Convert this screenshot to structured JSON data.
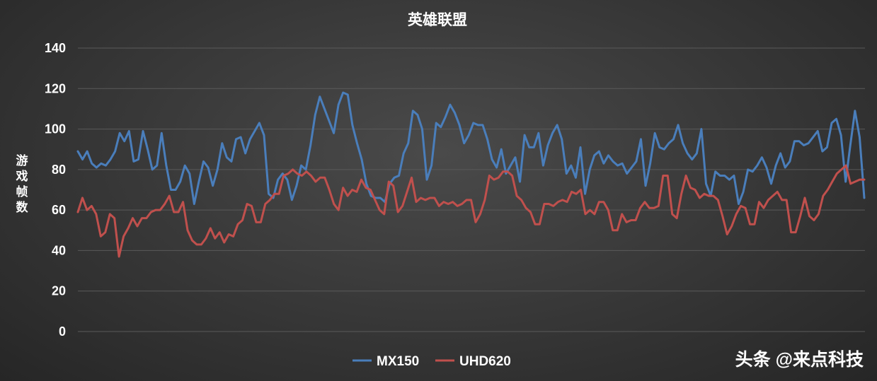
{
  "chart_data": {
    "type": "line",
    "title": "英雄联盟",
    "ylabel": "游戏帧数",
    "xlabel": "",
    "ylim": [
      0,
      140
    ],
    "yticks": [
      "0",
      "20",
      "40",
      "60",
      "80",
      "100",
      "120",
      "140"
    ],
    "grid": true,
    "legend_position": "bottom",
    "series": [
      {
        "name": "MX150",
        "color": "#4a7ebb",
        "values": [
          89,
          85,
          89,
          83,
          81,
          83,
          82,
          85,
          89,
          98,
          94,
          99,
          84,
          85,
          99,
          90,
          80,
          82,
          98,
          82,
          70,
          70,
          74,
          82,
          78,
          63,
          74,
          84,
          81,
          72,
          80,
          93,
          86,
          84,
          95,
          96,
          88,
          95,
          99,
          103,
          97,
          68,
          66,
          75,
          78,
          75,
          65,
          72,
          82,
          80,
          92,
          107,
          116,
          110,
          104,
          98,
          112,
          118,
          117,
          102,
          93,
          85,
          73,
          67,
          66,
          66,
          64,
          73,
          76,
          77,
          88,
          93,
          109,
          107,
          100,
          75,
          82,
          103,
          101,
          106,
          112,
          108,
          102,
          93,
          97,
          103,
          102,
          102,
          95,
          85,
          81,
          90,
          78,
          82,
          86,
          74,
          97,
          91,
          91,
          98,
          82,
          92,
          98,
          102,
          95,
          78,
          82,
          76,
          91,
          68,
          80,
          87,
          89,
          83,
          87,
          84,
          82,
          83,
          78,
          81,
          84,
          95,
          72,
          83,
          98,
          91,
          90,
          93,
          95,
          102,
          93,
          88,
          85,
          88,
          100,
          73,
          67,
          79,
          77,
          77,
          75,
          77,
          63,
          69,
          80,
          79,
          82,
          86,
          81,
          73,
          82,
          88,
          81,
          84,
          94,
          94,
          92,
          93,
          96,
          99,
          89,
          91,
          103,
          105,
          97,
          74,
          92,
          109,
          96,
          66
        ]
      },
      {
        "name": "UHD620",
        "color": "#c0504d",
        "values": [
          59,
          66,
          60,
          62,
          58,
          47,
          49,
          58,
          56,
          37,
          47,
          51,
          56,
          52,
          56,
          56,
          59,
          60,
          60,
          63,
          67,
          59,
          59,
          64,
          50,
          45,
          43,
          43,
          46,
          51,
          46,
          49,
          44,
          48,
          47,
          53,
          55,
          63,
          62,
          54,
          54,
          63,
          65,
          68,
          68,
          77,
          78,
          80,
          78,
          77,
          79,
          77,
          74,
          76,
          76,
          70,
          63,
          60,
          71,
          67,
          70,
          69,
          75,
          71,
          70,
          65,
          60,
          58,
          74,
          72,
          59,
          62,
          69,
          76,
          64,
          66,
          65,
          66,
          66,
          62,
          64,
          63,
          64,
          62,
          63,
          65,
          65,
          54,
          58,
          65,
          77,
          75,
          76,
          79,
          79,
          77,
          67,
          65,
          61,
          59,
          53,
          53,
          63,
          63,
          62,
          64,
          65,
          64,
          69,
          68,
          70,
          58,
          60,
          58,
          64,
          64,
          60,
          50,
          50,
          58,
          54,
          55,
          55,
          61,
          64,
          61,
          61,
          62,
          77,
          77,
          58,
          56,
          68,
          77,
          71,
          70,
          66,
          68,
          67,
          67,
          65,
          57,
          48,
          52,
          58,
          62,
          61,
          53,
          53,
          64,
          61,
          65,
          67,
          69,
          65,
          65,
          49,
          49,
          57,
          66,
          57,
          55,
          58,
          67,
          70,
          74,
          78,
          80,
          82,
          73,
          74,
          75,
          75
        ]
      }
    ]
  },
  "watermark": {
    "text": "头条 @来点科技"
  }
}
